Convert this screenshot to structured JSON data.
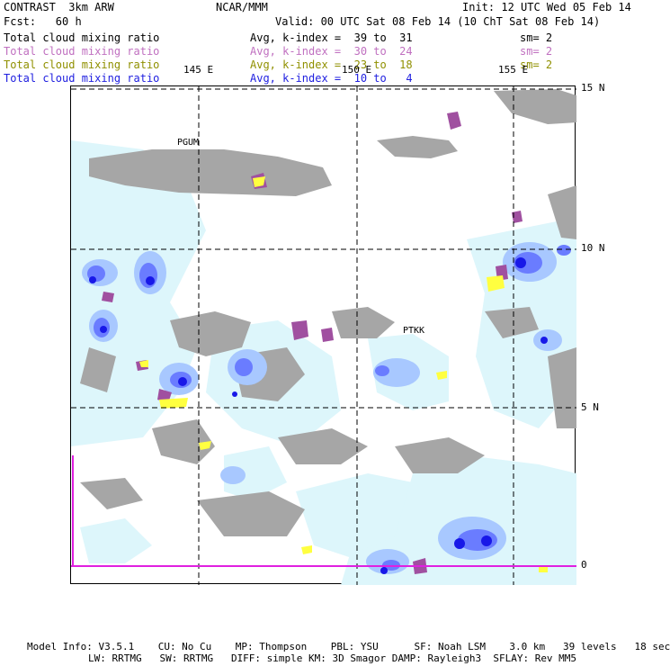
{
  "header": {
    "model": "CONTRAST  3km ARW",
    "org": "NCAR/MMM",
    "init": "Init: 12 UTC Wed 05 Feb 14",
    "fcst": "Fcst:   60 h",
    "valid": "Valid: 00 UTC Sat 08 Feb 14 (10 ChT Sat 08 Feb 14)"
  },
  "fields": [
    {
      "name": "Total cloud mixing ratio",
      "range": "Avg, k-index =  39 to  31",
      "sm": "sm= 2",
      "color": "#000000"
    },
    {
      "name": "Total cloud mixing ratio",
      "range": "Avg, k-index =  30 to  24",
      "sm": "sm= 2",
      "color": "#c070c0"
    },
    {
      "name": "Total cloud mixing ratio",
      "range": "Avg, k-index =  23 to  18",
      "sm": "sm= 2",
      "color": "#909000"
    },
    {
      "name": "Total cloud mixing ratio",
      "range": "Avg, k-index =  10 to   4",
      "sm": "",
      "color": "#2020e0"
    }
  ],
  "map": {
    "lon_labels": [
      "145 E",
      "150 E",
      "155 E"
    ],
    "lat_labels": [
      "15 N",
      "10 N",
      "5 N",
      "0"
    ],
    "stations": [
      "PGUM",
      "PTKK"
    ]
  },
  "footer": {
    "line1": "Model Info: V3.5.1    CU: No Cu    MP: Thompson    PBL: YSU      SF: Noah LSM    3.0 km   39 levels   18 sec",
    "line2": "LW: RRTMG   SW: RRTMG   DIFF: simple KM: 3D Smagor DAMP: Rayleigh3  SFLAY: Rev MM5"
  },
  "colors": {
    "gray_cloud": "#a6a6a6",
    "light_cyan": "#ddf6fb",
    "light_blue": "#a8c8ff",
    "mid_blue": "#6a7cff",
    "deep_blue": "#1818e8",
    "magenta": "#a050a0",
    "yellow": "#ffff40",
    "boundary_magenta": "#e020e0"
  }
}
